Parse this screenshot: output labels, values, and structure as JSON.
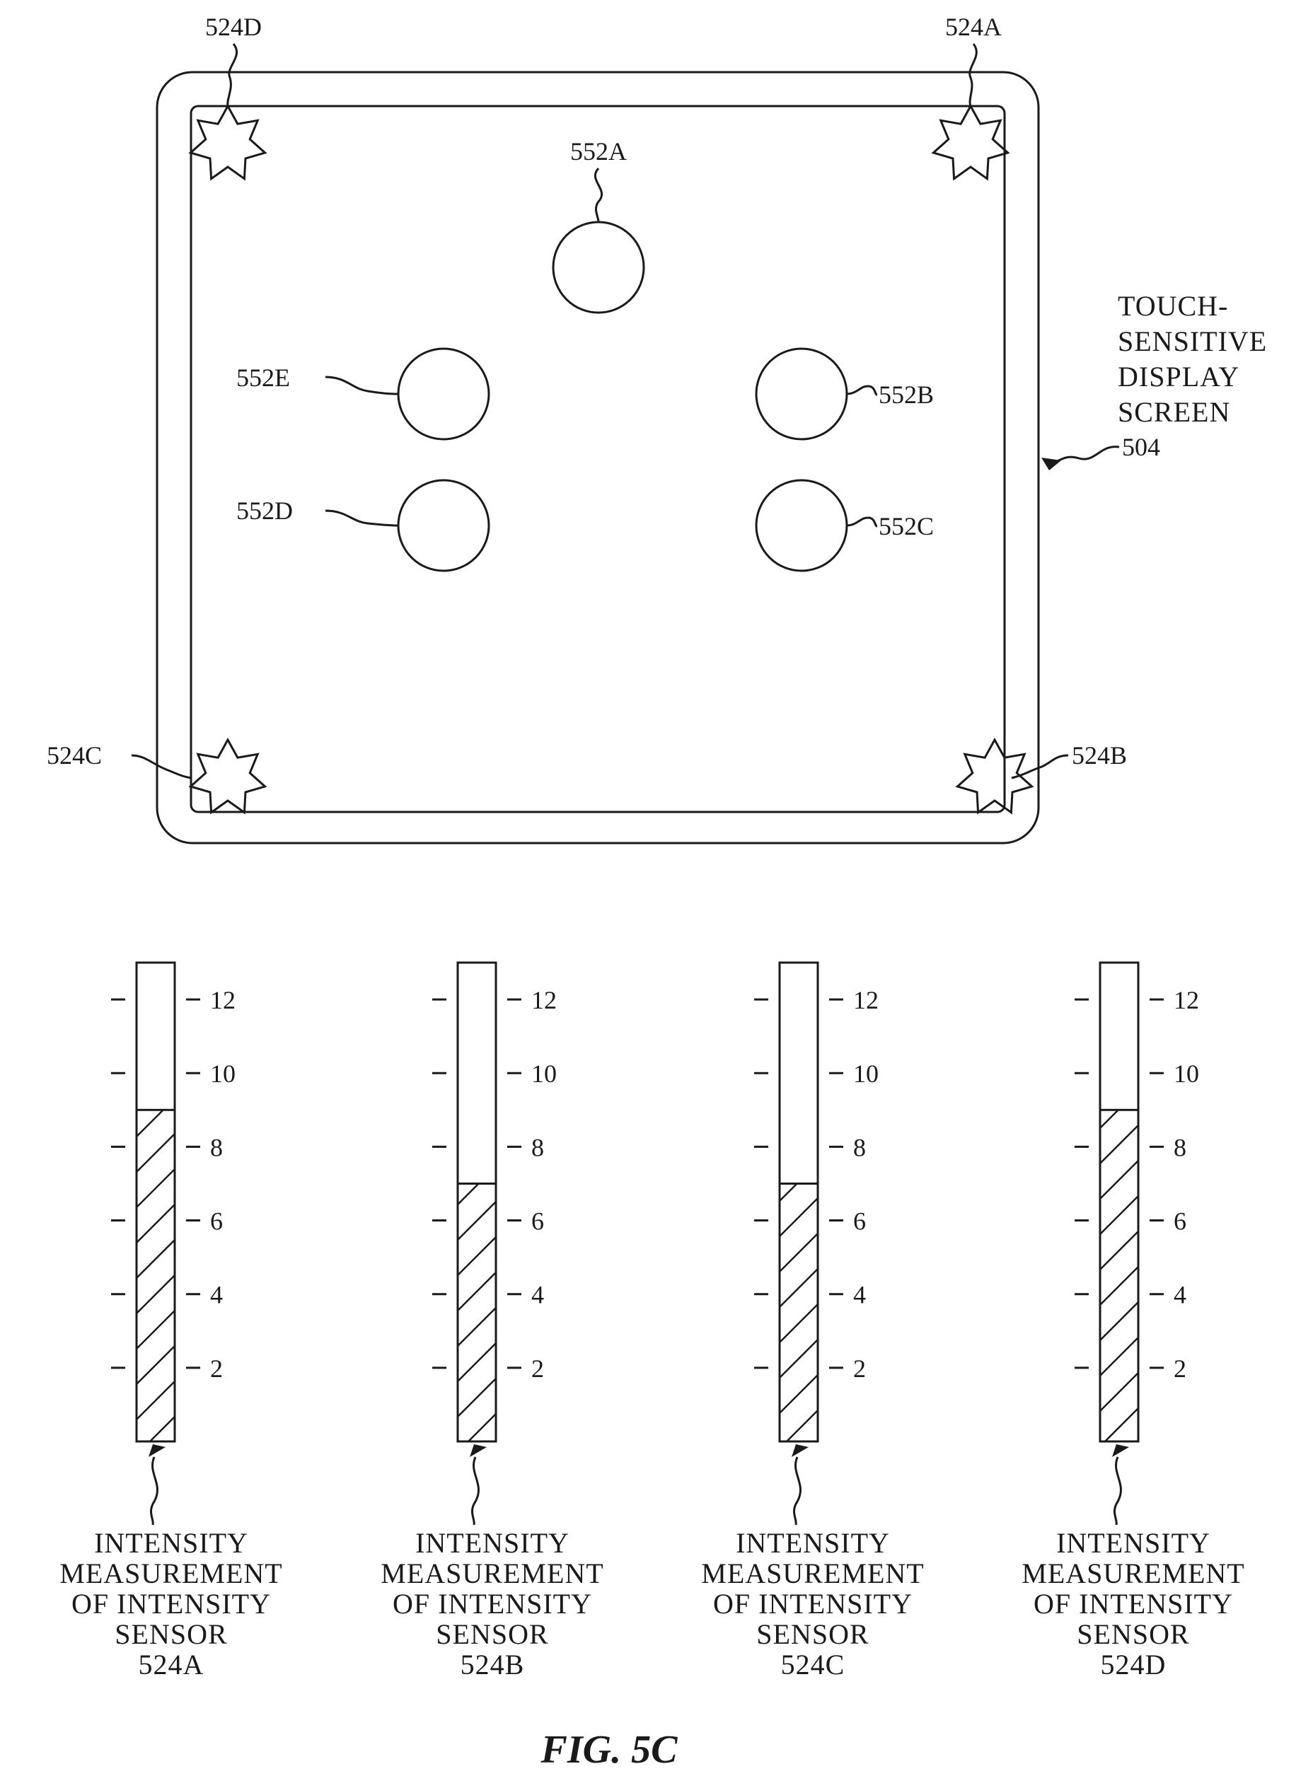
{
  "figure_label": "FIG. 5C",
  "device": {
    "label_lines": [
      "TOUCH-",
      "SENSITIVE",
      "DISPLAY",
      "SCREEN"
    ],
    "ref": "504"
  },
  "contacts": [
    {
      "id": "552A"
    },
    {
      "id": "552B"
    },
    {
      "id": "552C"
    },
    {
      "id": "552D"
    },
    {
      "id": "552E"
    }
  ],
  "sensors": [
    {
      "id": "524A"
    },
    {
      "id": "524B"
    },
    {
      "id": "524C"
    },
    {
      "id": "524D"
    }
  ],
  "chart_data": {
    "type": "bar",
    "categories": [
      "524A",
      "524B",
      "524C",
      "524D"
    ],
    "values": [
      9,
      7,
      7,
      9
    ],
    "ylim": [
      0,
      13
    ],
    "ytick_labels": [
      "2",
      "4",
      "6",
      "8",
      "10",
      "12"
    ],
    "bar_caption_lines": [
      "INTENSITY",
      "MEASUREMENT",
      "OF INTENSITY",
      "SENSOR"
    ],
    "fill_pattern": "diagonal-hatch"
  }
}
